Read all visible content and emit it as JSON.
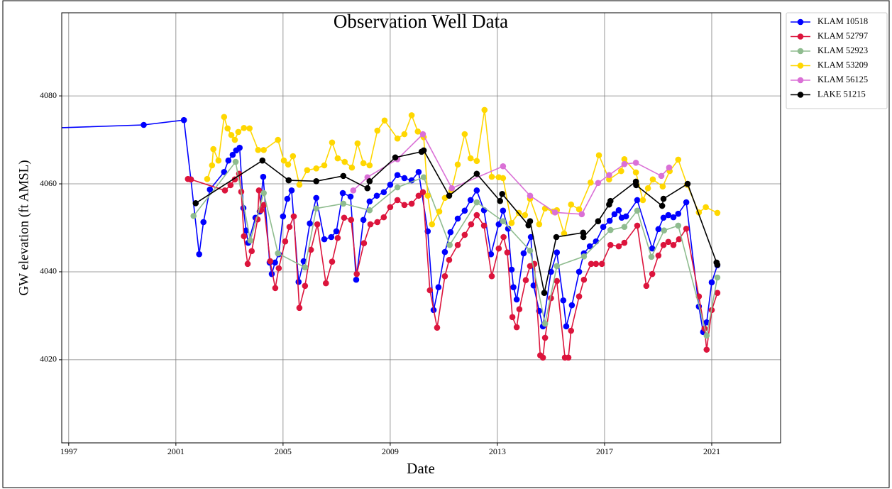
{
  "chart_data": {
    "type": "line",
    "title": "Observation Well Data",
    "x_label": "Date",
    "y_label": "GW elevation (ft AMSL)",
    "xlim": [
      1996.74,
      2023.57
    ],
    "xticks": [
      1997,
      2001,
      2005,
      2009,
      2013,
      2017,
      2021
    ],
    "ylim": [
      4001.1,
      4098.9
    ],
    "yticks": [
      4020,
      4040,
      4060,
      4080
    ],
    "grid": true,
    "legend": "outside upper right",
    "series": [
      {
        "name": "KLAM 10518",
        "color": "#0000ff",
        "x": [
          1995.5,
          1999.8,
          2001.3,
          2001.56,
          2001.87,
          2002.03,
          2002.27,
          2002.8,
          2002.96,
          2003.12,
          2003.25,
          2003.38,
          2003.52,
          2003.62,
          2003.7,
          2003.97,
          2004.13,
          2004.26,
          2004.5,
          2004.58,
          2004.7,
          2004.84,
          2005.0,
          2005.16,
          2005.32,
          2005.58,
          2005.77,
          2006.0,
          2006.24,
          2006.54,
          2006.8,
          2006.99,
          2007.23,
          2007.52,
          2007.73,
          2008.0,
          2008.23,
          2008.5,
          2008.76,
          2009.0,
          2009.27,
          2009.53,
          2009.8,
          2010.06,
          2010.4,
          2010.62,
          2010.8,
          2011.04,
          2011.25,
          2011.52,
          2011.78,
          2012.0,
          2012.23,
          2012.5,
          2012.76,
          2013.05,
          2013.21,
          2013.4,
          2013.53,
          2013.6,
          2013.72,
          2013.98,
          2014.25,
          2014.35,
          2014.56,
          2014.7,
          2015.0,
          2015.22,
          2015.46,
          2015.57,
          2015.78,
          2016.05,
          2016.23,
          2016.45,
          2016.68,
          2016.95,
          2017.19,
          2017.37,
          2017.53,
          2017.64,
          2017.8,
          2018.22,
          2018.78,
          2019.01,
          2019.2,
          2019.38,
          2019.57,
          2019.75,
          2020.05,
          2020.52,
          2020.68,
          2020.81,
          2021.0,
          2021.21
        ],
        "values": [
          4072.5,
          4073.4,
          4074.5,
          4061,
          4044,
          4051.3,
          4058.7,
          4062.7,
          4065.3,
          4066.6,
          4067.6,
          4068.2,
          4054.5,
          4049.4,
          4046.6,
          4052.3,
          4053.7,
          4061.6,
          4042.1,
          4039.5,
          4042.1,
          4044,
          4052.6,
          4056.6,
          4058.5,
          4037.7,
          4042.4,
          4051,
          4056.8,
          4047.4,
          4047.9,
          4049.2,
          4057.9,
          4057.1,
          4038.2,
          4051.8,
          4056,
          4057.3,
          4058.1,
          4059.8,
          4062,
          4061.3,
          4060.8,
          4062.7,
          4049.2,
          4031.3,
          4036.5,
          4044.5,
          4049,
          4052.1,
          4053.9,
          4056.3,
          4058.5,
          4054,
          4044,
          4050.8,
          4053.9,
          4049.8,
          4040.5,
          4036.5,
          4033.7,
          4044.2,
          4047.9,
          4036.9,
          4031.1,
          4027.6,
          4040,
          4044.4,
          4033.5,
          4027.6,
          4032.4,
          4040,
          4044.2,
          4045.8,
          4046.9,
          4050.2,
          4051.6,
          4053.1,
          4054,
          4052.3,
          4052.6,
          4056.3,
          4045.3,
          4049.7,
          4052.3,
          4052.9,
          4052.4,
          4053.2,
          4055.8,
          4032.1,
          4026.3,
          4028.5,
          4037.6,
          4041.5
        ]
      },
      {
        "name": "KLAM 52797",
        "color": "#dc143c",
        "x": [
          2001.45,
          2001.56,
          2002.83,
          2003.04,
          2003.2,
          2003.36,
          2003.44,
          2003.54,
          2003.68,
          2003.83,
          2004.05,
          2004.1,
          2004.18,
          2004.28,
          2004.52,
          2004.71,
          2004.84,
          2005.08,
          2005.24,
          2005.4,
          2005.61,
          2005.82,
          2006.04,
          2006.28,
          2006.6,
          2006.83,
          2007.04,
          2007.28,
          2007.54,
          2007.75,
          2008.02,
          2008.26,
          2008.52,
          2008.76,
          2009.0,
          2009.27,
          2009.53,
          2009.8,
          2010.06,
          2010.22,
          2010.48,
          2010.75,
          2011.04,
          2011.2,
          2011.52,
          2011.78,
          2012.02,
          2012.23,
          2012.5,
          2012.79,
          2013.05,
          2013.23,
          2013.37,
          2013.56,
          2013.72,
          2013.82,
          2014.06,
          2014.22,
          2014.38,
          2014.6,
          2014.7,
          2014.78,
          2015.0,
          2015.22,
          2015.52,
          2015.65,
          2015.75,
          2016.05,
          2016.23,
          2016.5,
          2016.68,
          2016.9,
          2017.22,
          2017.53,
          2017.74,
          2018.22,
          2018.56,
          2018.78,
          2019.01,
          2019.2,
          2019.38,
          2019.57,
          2019.78,
          2020.05,
          2020.52,
          2020.73,
          2020.81,
          2021.0,
          2021.21
        ],
        "values": [
          4061.1,
          4061,
          4058.5,
          4059.7,
          4061,
          4062.3,
          4058.2,
          4048.1,
          4041.8,
          4044.7,
          4051.9,
          4058.5,
          4054,
          4055.2,
          4042.4,
          4036.3,
          4040.8,
          4046.9,
          4050.2,
          4052.6,
          4031.8,
          4036.8,
          4045,
          4050.8,
          4037.4,
          4042.3,
          4047.7,
          4052.3,
          4051.8,
          4039.5,
          4046.5,
          4050.8,
          4051.3,
          4052.4,
          4054.7,
          4056.3,
          4055.2,
          4055.5,
          4057.3,
          4058.1,
          4035.8,
          4027.3,
          4039,
          4042.7,
          4046.1,
          4048.4,
          4050.8,
          4052.9,
          4050.5,
          4039,
          4045.3,
          4047.9,
          4044.4,
          4029.7,
          4027.4,
          4031.5,
          4038.1,
          4041.3,
          4041.8,
          4021,
          4020.5,
          4025,
          4034,
          4037.9,
          4020.5,
          4020.5,
          4026.6,
          4034.4,
          4038.2,
          4041.8,
          4041.8,
          4041.8,
          4046.1,
          4045.8,
          4046.6,
          4050.5,
          4036.8,
          4039.5,
          4043.7,
          4046.1,
          4046.8,
          4046.1,
          4047.4,
          4049.8,
          4034.4,
          4027.1,
          4022.3,
          4031.3,
          4035.2
        ]
      },
      {
        "name": "KLAM 52923",
        "color": "#8fbc8f",
        "x": [
          2001.66,
          2003.23,
          2003.78,
          2004.28,
          2004.81,
          2005.82,
          2006.24,
          2007.25,
          2008.23,
          2009.27,
          2010.25,
          2011.22,
          2012.23,
          2013.21,
          2014.22,
          2014.78,
          2015.22,
          2016.23,
          2017.22,
          2017.74,
          2018.22,
          2018.75,
          2019.22,
          2019.75,
          2020.81,
          2021.21
        ],
        "values": [
          4052.7,
          4065,
          4047.1,
          4057.9,
          4044.2,
          4041,
          4054.4,
          4055.5,
          4054,
          4059.2,
          4061.5,
          4046.1,
          4055.8,
          4051.5,
          4044.8,
          4028.2,
          4041.3,
          4043.5,
          4049.5,
          4050.2,
          4053.9,
          4043.4,
          4049.4,
          4050.5,
          4025.5,
          4038.7
        ]
      },
      {
        "name": "KLAM 53209",
        "color": "#ffd700",
        "x": [
          2002.17,
          2002.35,
          2002.4,
          2002.59,
          2002.8,
          2002.93,
          2003.07,
          2003.2,
          2003.33,
          2003.54,
          2003.75,
          2004.07,
          2004.28,
          2004.81,
          2005.03,
          2005.19,
          2005.37,
          2005.61,
          2005.9,
          2006.24,
          2006.54,
          2006.83,
          2007.04,
          2007.3,
          2007.57,
          2007.78,
          2008.0,
          2008.23,
          2008.52,
          2008.79,
          2009.27,
          2009.53,
          2009.8,
          2010.03,
          2010.25,
          2010.4,
          2010.56,
          2010.83,
          2011.04,
          2011.28,
          2011.52,
          2011.78,
          2012.0,
          2012.23,
          2012.52,
          2012.79,
          2013.05,
          2013.21,
          2013.53,
          2013.8,
          2014.03,
          2014.22,
          2014.56,
          2014.78,
          2015.08,
          2015.22,
          2015.49,
          2015.75,
          2016.05,
          2016.48,
          2016.79,
          2017.17,
          2017.62,
          2017.74,
          2018.17,
          2018.43,
          2018.62,
          2018.8,
          2019.17,
          2019.43,
          2019.75,
          2020.08,
          2020.52,
          2020.78,
          2021.21
        ],
        "values": [
          4061.1,
          4064.2,
          4067.9,
          4065.3,
          4075.2,
          4072.6,
          4071.1,
          4070,
          4071.8,
          4072.7,
          4072.6,
          4067.7,
          4067.7,
          4070,
          4065.3,
          4064.4,
          4066.3,
          4059.8,
          4063.1,
          4063.5,
          4064.2,
          4069.4,
          4065.8,
          4065,
          4063.7,
          4069.2,
          4064.7,
          4064.2,
          4072.1,
          4074.4,
          4070.3,
          4071.3,
          4075.6,
          4071.9,
          4070.6,
          4057.3,
          4050.8,
          4053.7,
          4056.8,
          4058.4,
          4064.4,
          4071.3,
          4065.8,
          4065.2,
          4076.8,
          4061.6,
          4061.5,
          4061.3,
          4051.1,
          4053.4,
          4052.9,
          4056.6,
          4050.8,
          4054.4,
          4053.7,
          4054,
          4048.7,
          4055.3,
          4054.2,
          4060.3,
          4066.5,
          4061,
          4062.9,
          4065.6,
          4062.6,
          4056.3,
          4059,
          4061,
          4059.4,
          4062.9,
          4065.5,
          4059.8,
          4053.5,
          4054.7,
          4053.4
        ]
      },
      {
        "name": "KLAM 56125",
        "color": "#da70d6",
        "x": [
          2007.62,
          2008.15,
          2009.27,
          2010.22,
          2011.3,
          2013.21,
          2014.22,
          2015.15,
          2016.15,
          2016.76,
          2017.17,
          2017.74,
          2018.17,
          2019.12,
          2019.41
        ],
        "values": [
          4058.5,
          4061.5,
          4065.6,
          4071.3,
          4059,
          4064,
          4057.3,
          4053.5,
          4053.1,
          4060.2,
          4062,
          4064.5,
          4064.8,
          4061.8,
          4063.7
        ]
      },
      {
        "name": "LAKE 51215",
        "color": "#000000",
        "x": [
          2001.74,
          2004.23,
          2005.21,
          2006.24,
          2007.25,
          2008.15,
          2008.23,
          2009.19,
          2010.17,
          2010.25,
          2011.2,
          2012.23,
          2013.1,
          2013.18,
          2014.16,
          2014.22,
          2014.75,
          2015.2,
          2016.2,
          2016.21,
          2016.76,
          2017.17,
          2017.22,
          2018.17,
          2018.18,
          2019.15,
          2019.2,
          2020.1,
          2021.18,
          2021.21
        ],
        "values": [
          4055.6,
          4065.3,
          4060.8,
          4060.6,
          4061.8,
          4059,
          4060.6,
          4066,
          4067.3,
          4067.6,
          4057.3,
          4062.3,
          4056.1,
          4057.7,
          4050.6,
          4051.5,
          4035.2,
          4047.9,
          4048.9,
          4047.9,
          4051.5,
          4055.3,
          4056.1,
          4060.5,
          4059.7,
          4055,
          4056.6,
          4060,
          4042.1,
          4041.6
        ]
      }
    ]
  }
}
